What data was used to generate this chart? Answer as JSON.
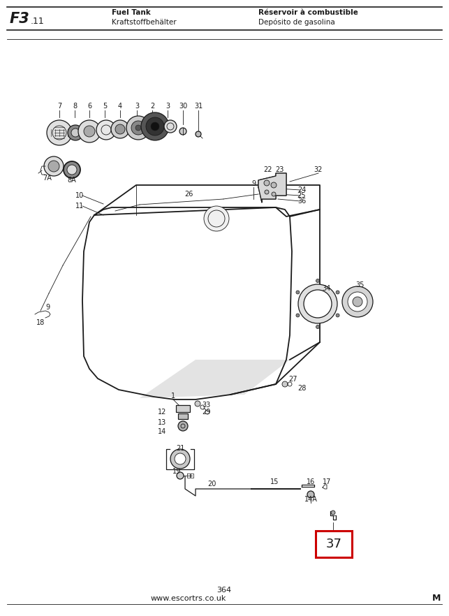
{
  "title_left_bold": "F3",
  "title_left_sub": ".11",
  "title_center_line1": "Fuel Tank",
  "title_center_line2": "Kraftstoffbehälter",
  "title_right_line1": "Réservoir à combustible",
  "title_right_line2": "Depósito de gasolina",
  "footer_page": "364",
  "footer_url": "www.escortrs.co.uk",
  "footer_right": "M",
  "highlight_number": "37",
  "bg_color": "#ffffff",
  "line_color": "#1a1a1a",
  "highlight_box_color": "#cc0000",
  "fig_width": 6.43,
  "fig_height": 8.82
}
